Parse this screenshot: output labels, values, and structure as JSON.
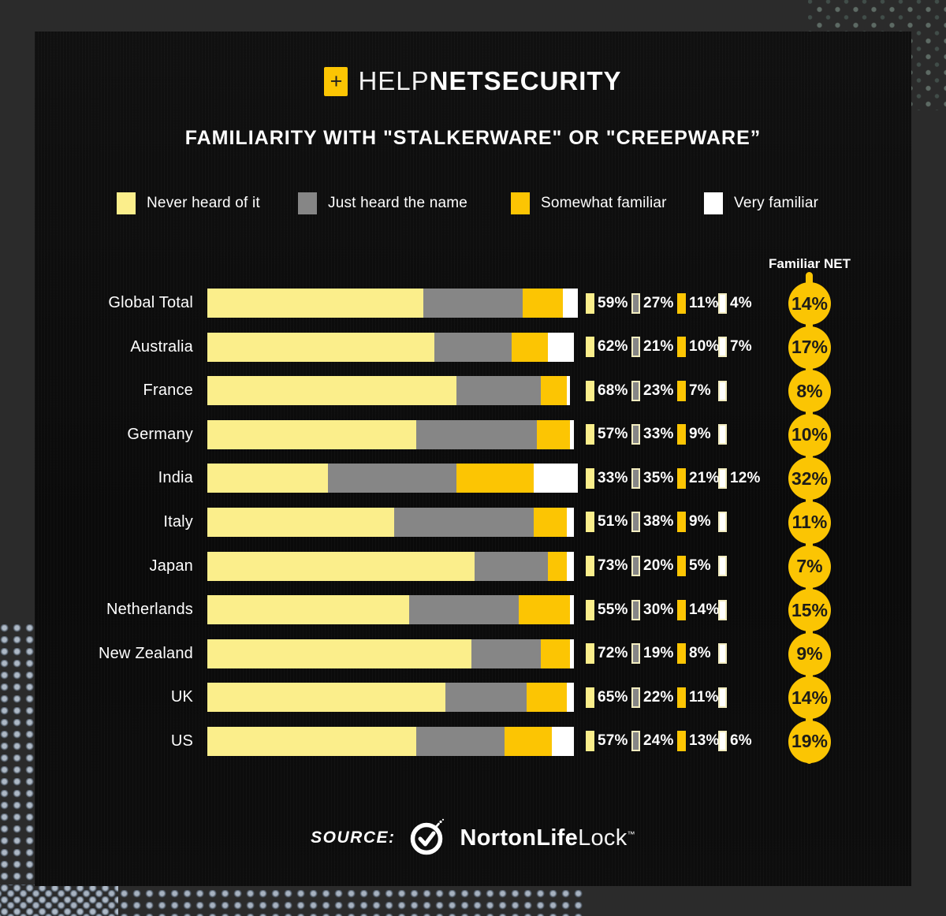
{
  "header": {
    "plus_glyph": "+",
    "brand_light": "HELP",
    "brand_bold": "NETSECURITY"
  },
  "chart_data": {
    "type": "bar",
    "variant": "horizontal-stacked",
    "title": "FAMILIARITY WITH \"STALKERWARE\" OR \"CREEPWARE”",
    "legend_position": "top",
    "legend": [
      "Never heard of it",
      "Just heard the name",
      "Somewhat familiar",
      "Very familiar"
    ],
    "series_colors": [
      "#fbee8b",
      "#868686",
      "#fcc503",
      "#ffffff"
    ],
    "swatch_borders": [
      "#fbee8b",
      "#f2ecc0",
      "#fcc503",
      "#f2ecc0"
    ],
    "x_range": [
      0,
      100
    ],
    "unit": "%",
    "net_label": "Familiar NET",
    "net_circle_color": "#fbc503",
    "net_text_color": "#1d1c19",
    "rows": [
      {
        "country": "Global Total",
        "values": [
          59,
          27,
          11,
          4
        ],
        "value_labels": [
          "59%",
          "27%",
          "11%",
          "4%"
        ],
        "net": "14%"
      },
      {
        "country": "Australia",
        "values": [
          62,
          21,
          10,
          7
        ],
        "value_labels": [
          "62%",
          "21%",
          "10%",
          "7%"
        ],
        "net": "17%"
      },
      {
        "country": "France",
        "values": [
          68,
          23,
          7,
          1
        ],
        "value_labels": [
          "68%",
          "23%",
          "7%",
          ""
        ],
        "net": "8%"
      },
      {
        "country": "Germany",
        "values": [
          57,
          33,
          9,
          1
        ],
        "value_labels": [
          "57%",
          "33%",
          "9%",
          ""
        ],
        "net": "10%"
      },
      {
        "country": "India",
        "values": [
          33,
          35,
          21,
          12
        ],
        "value_labels": [
          "33%",
          "35%",
          "21%",
          "12%"
        ],
        "net": "32%"
      },
      {
        "country": "Italy",
        "values": [
          51,
          38,
          9,
          2
        ],
        "value_labels": [
          "51%",
          "38%",
          "9%",
          ""
        ],
        "net": "11%"
      },
      {
        "country": "Japan",
        "values": [
          73,
          20,
          5,
          2
        ],
        "value_labels": [
          "73%",
          "20%",
          "5%",
          ""
        ],
        "net": "7%"
      },
      {
        "country": "Netherlands",
        "values": [
          55,
          30,
          14,
          1
        ],
        "value_labels": [
          "55%",
          "30%",
          "14%",
          ""
        ],
        "net": "15%"
      },
      {
        "country": "New Zealand",
        "values": [
          72,
          19,
          8,
          1
        ],
        "value_labels": [
          "72%",
          "19%",
          "8%",
          ""
        ],
        "net": "9%"
      },
      {
        "country": "UK",
        "values": [
          65,
          22,
          11,
          2
        ],
        "value_labels": [
          "65%",
          "22%",
          "11%",
          ""
        ],
        "net": "14%"
      },
      {
        "country": "US",
        "values": [
          57,
          24,
          13,
          6
        ],
        "value_labels": [
          "57%",
          "24%",
          "13%",
          "6%"
        ],
        "net": "19%"
      }
    ]
  },
  "source": {
    "label": "SOURCE:",
    "brand_bold": "NortonLife",
    "brand_regular": "Lock",
    "tm": "™"
  },
  "colors": {
    "card_bg": "#0b0b0b",
    "outer_bg": "#2b2b2b",
    "accent_gold": "#fbc503",
    "badge_plus": "#1f1f1f",
    "text": "#ffffff"
  }
}
